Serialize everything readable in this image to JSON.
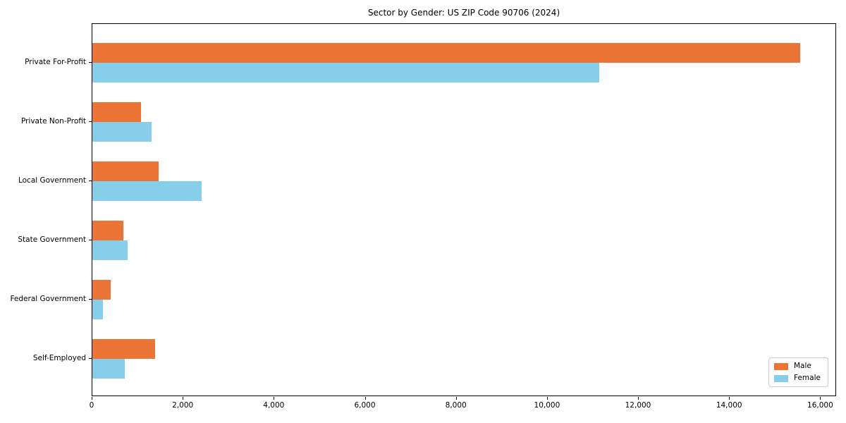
{
  "chart_data": {
    "type": "bar",
    "orientation": "horizontal",
    "title": "Sector by Gender: US ZIP Code 90706 (2024)",
    "categories": [
      "Private For-Profit",
      "Private Non-Profit",
      "Local Government",
      "State Government",
      "Federal Government",
      "Self-Employed"
    ],
    "series": [
      {
        "name": "Male",
        "color": "#ec7434",
        "values": [
          15550,
          1070,
          1450,
          680,
          400,
          1380
        ]
      },
      {
        "name": "Female",
        "color": "#87ceeb",
        "values": [
          11130,
          1300,
          2400,
          780,
          230,
          710
        ]
      }
    ],
    "xlabel": "",
    "ylabel": "",
    "xlim": [
      0,
      16350
    ],
    "xticks": [
      0,
      2000,
      4000,
      6000,
      8000,
      10000,
      12000,
      14000,
      16000
    ],
    "xtick_format": "comma",
    "grid": false,
    "legend": {
      "position": "lower right",
      "entries": [
        "Male",
        "Female"
      ]
    },
    "colors": {
      "male": "#ec7434",
      "female": "#87ceeb",
      "axis": "#000000",
      "legend_border": "#cccccc"
    }
  }
}
